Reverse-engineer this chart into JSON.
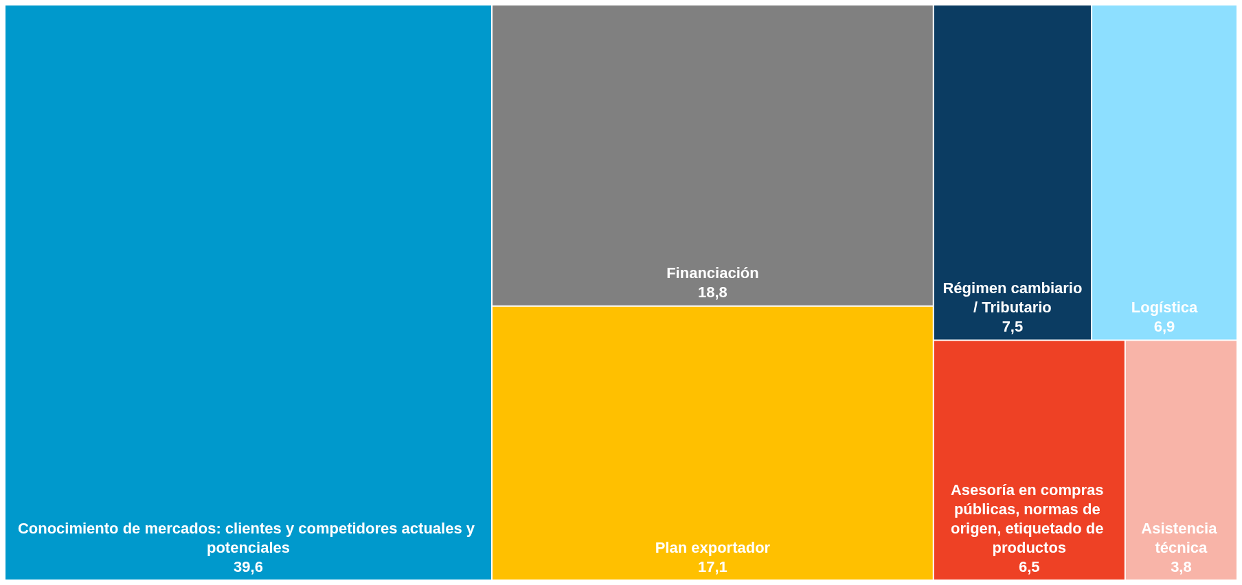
{
  "chart_data": {
    "type": "other",
    "categories": [
      "Conocimiento de mercados: clientes y competidores actuales y potenciales",
      "Financiación",
      "Plan exportador",
      "Régimen cambiario/ Tributario",
      "Logística",
      "Asesoría en compras públicas, normas de origen, etiquetado de productos",
      "Asistencia técnica"
    ],
    "values": [
      39.6,
      18.8,
      17.1,
      7.5,
      6.9,
      6.5,
      3.8
    ],
    "value_labels": [
      "39,6",
      "18,8",
      "17,1",
      "7,5",
      "6,9",
      "6,5",
      "3,8"
    ],
    "colors": [
      "#0099cc",
      "#808080",
      "#ffc000",
      "#0b3c62",
      "#8ddfff",
      "#ee4125",
      "#f8b4a8"
    ]
  }
}
